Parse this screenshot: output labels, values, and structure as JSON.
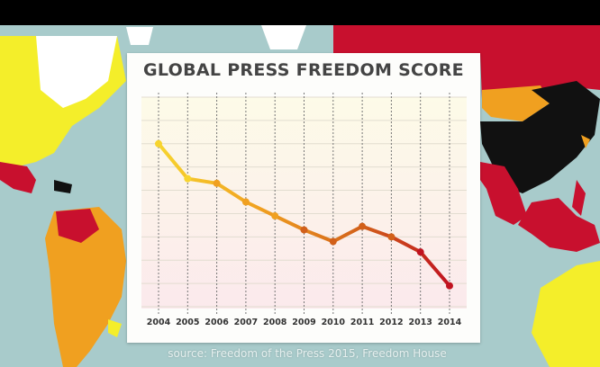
{
  "chart_data": {
    "type": "line",
    "title": "GLOBAL PRESS FREEDOM SCORE",
    "categories": [
      "2004",
      "2005",
      "2006",
      "2007",
      "2008",
      "2009",
      "2010",
      "2011",
      "2012",
      "2013",
      "2014"
    ],
    "values": [
      7.0,
      5.5,
      5.3,
      4.5,
      3.9,
      3.3,
      2.8,
      3.45,
      3.0,
      2.35,
      0.9
    ],
    "ylim": [
      0,
      9
    ],
    "y_tick_labels_shown": false,
    "grid": true,
    "line_gradient": [
      "#f7d42e",
      "#f0a020",
      "#d2601a",
      "#c01320"
    ],
    "xlabel": "",
    "ylabel": ""
  },
  "source": "source: Freedom of the Press 2015, Freedom House"
}
